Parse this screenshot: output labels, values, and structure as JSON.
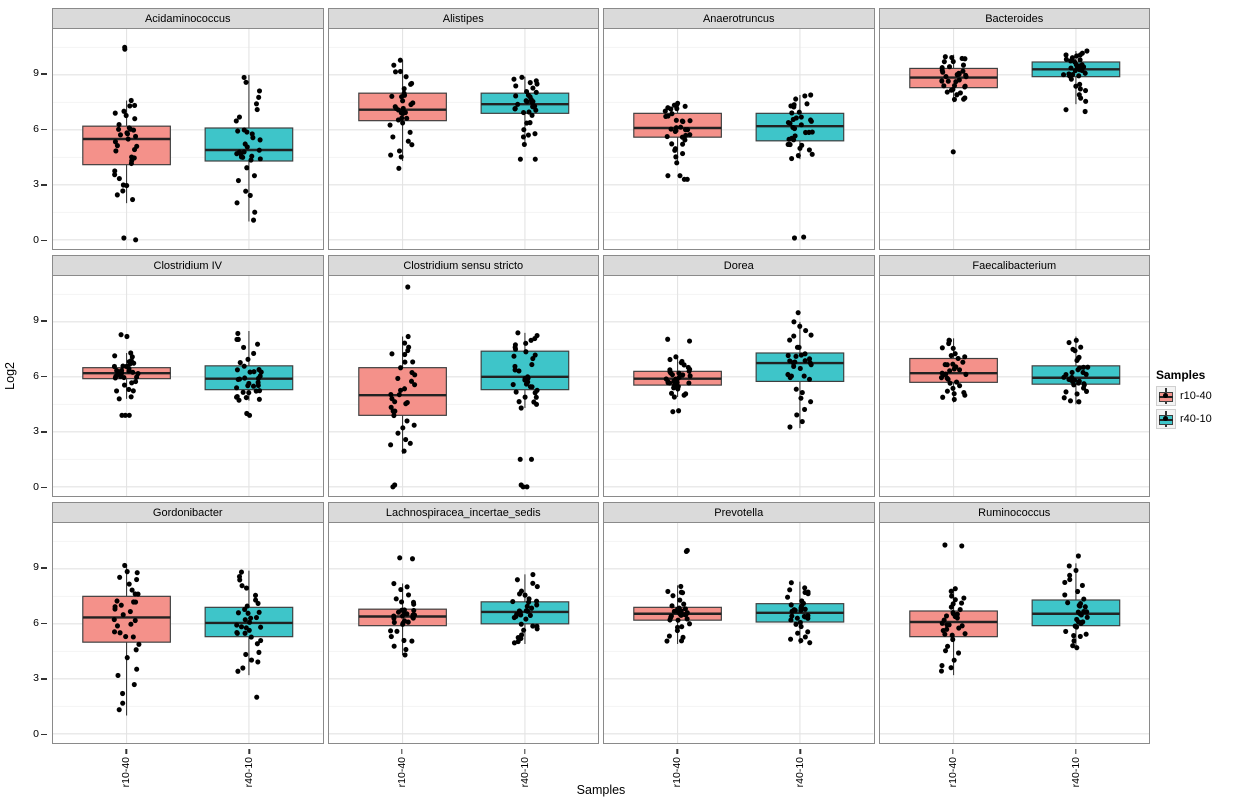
{
  "axes": {
    "y_title": "Log2",
    "x_title": "Samples",
    "yticks": [
      0,
      3,
      6,
      9
    ],
    "ylim": [
      -0.5,
      11.5
    ],
    "x_categories": [
      "r10-40",
      "r40-10"
    ]
  },
  "legend": {
    "title": "Samples",
    "items": [
      {
        "label": "r10-40",
        "color": "#F4918A"
      },
      {
        "label": "r40-10",
        "color": "#3EC5C9"
      }
    ]
  },
  "style": {
    "box_border": "#3F3F3F",
    "median": "#222222",
    "point": "#000000",
    "strip_bg": "#DADADA",
    "panel_border": "#8A8A8A",
    "grid_major": "#E3E3E3",
    "grid_minor": "#F2F2F2"
  },
  "chart_data": {
    "type": "boxplot",
    "overlay": "jittered points",
    "facet_layout": {
      "rows": 3,
      "cols": 4
    },
    "x_categories": [
      "r10-40",
      "r40-10"
    ],
    "ylabel": "Log2",
    "xlabel": "Samples",
    "ylim": [
      -0.5,
      11.5
    ],
    "yticks": [
      0,
      3,
      6,
      9
    ],
    "facets": [
      {
        "title": "Acidaminococcus",
        "groups": [
          {
            "category": "r10-40",
            "stats": {
              "lo": 2.0,
              "q1": 4.1,
              "med": 5.5,
              "q3": 6.2,
              "hi": 7.6
            },
            "outliers": [
              10.5,
              10.4,
              0.1,
              0.0
            ],
            "n_points": 34
          },
          {
            "category": "r40-10",
            "stats": {
              "lo": 1.0,
              "q1": 4.3,
              "med": 4.9,
              "q3": 6.1,
              "hi": 9.0
            },
            "outliers": [],
            "n_points": 34
          }
        ]
      },
      {
        "title": "Alistipes",
        "groups": [
          {
            "category": "r10-40",
            "stats": {
              "lo": 4.3,
              "q1": 6.5,
              "med": 7.1,
              "q3": 8.0,
              "hi": 9.8
            },
            "outliers": [
              3.9
            ],
            "n_points": 34
          },
          {
            "category": "r40-10",
            "stats": {
              "lo": 5.2,
              "q1": 6.9,
              "med": 7.4,
              "q3": 8.0,
              "hi": 8.9
            },
            "outliers": [
              4.4,
              4.4
            ],
            "n_points": 34
          }
        ]
      },
      {
        "title": "Anaerotruncus",
        "groups": [
          {
            "category": "r10-40",
            "stats": {
              "lo": 4.2,
              "q1": 5.6,
              "med": 6.1,
              "q3": 6.9,
              "hi": 7.5
            },
            "outliers": [
              3.5,
              3.5,
              3.3,
              3.3
            ],
            "n_points": 34
          },
          {
            "category": "r40-10",
            "stats": {
              "lo": 4.4,
              "q1": 5.4,
              "med": 6.2,
              "q3": 6.9,
              "hi": 7.9
            },
            "outliers": [
              0.15,
              0.1
            ],
            "n_points": 34
          }
        ]
      },
      {
        "title": "Bacteroides",
        "groups": [
          {
            "category": "r10-40",
            "stats": {
              "lo": 7.5,
              "q1": 8.3,
              "med": 8.85,
              "q3": 9.35,
              "hi": 10.1
            },
            "outliers": [
              4.8
            ],
            "n_points": 34
          },
          {
            "category": "r40-10",
            "stats": {
              "lo": 7.4,
              "q1": 8.9,
              "med": 9.3,
              "q3": 9.7,
              "hi": 10.3
            },
            "outliers": [
              7.1,
              7.0
            ],
            "n_points": 34
          }
        ]
      },
      {
        "title": "Clostridium IV",
        "groups": [
          {
            "category": "r10-40",
            "stats": {
              "lo": 4.8,
              "q1": 5.9,
              "med": 6.2,
              "q3": 6.5,
              "hi": 7.3
            },
            "outliers": [
              8.3,
              8.2,
              3.9,
              3.9,
              3.9
            ],
            "n_points": 34
          },
          {
            "category": "r40-10",
            "stats": {
              "lo": 4.7,
              "q1": 5.3,
              "med": 5.9,
              "q3": 6.6,
              "hi": 8.5
            },
            "outliers": [
              4.0,
              3.9
            ],
            "n_points": 34
          }
        ]
      },
      {
        "title": "Clostridium sensu stricto",
        "groups": [
          {
            "category": "r10-40",
            "stats": {
              "lo": 1.8,
              "q1": 3.9,
              "med": 5.0,
              "q3": 6.5,
              "hi": 8.2
            },
            "outliers": [
              10.9,
              0.1,
              0.0
            ],
            "n_points": 34
          },
          {
            "category": "r40-10",
            "stats": {
              "lo": 4.3,
              "q1": 5.3,
              "med": 6.0,
              "q3": 7.4,
              "hi": 8.4
            },
            "outliers": [
              1.5,
              1.5,
              0.1,
              0.0,
              0.0
            ],
            "n_points": 34
          }
        ]
      },
      {
        "title": "Dorea",
        "groups": [
          {
            "category": "r10-40",
            "stats": {
              "lo": 4.9,
              "q1": 5.55,
              "med": 5.9,
              "q3": 6.3,
              "hi": 7.1
            },
            "outliers": [
              8.05,
              7.95,
              4.15,
              4.1
            ],
            "n_points": 34
          },
          {
            "category": "r40-10",
            "stats": {
              "lo": 3.2,
              "q1": 5.75,
              "med": 6.75,
              "q3": 7.3,
              "hi": 9.0
            },
            "outliers": [
              9.5
            ],
            "n_points": 34
          }
        ]
      },
      {
        "title": "Faecalibacterium",
        "groups": [
          {
            "category": "r10-40",
            "stats": {
              "lo": 4.6,
              "q1": 5.7,
              "med": 6.2,
              "q3": 7.0,
              "hi": 8.1
            },
            "outliers": [],
            "n_points": 34
          },
          {
            "category": "r40-10",
            "stats": {
              "lo": 4.5,
              "q1": 5.6,
              "med": 5.95,
              "q3": 6.6,
              "hi": 8.2
            },
            "outliers": [],
            "n_points": 34
          }
        ]
      },
      {
        "title": "Gordonibacter",
        "groups": [
          {
            "category": "r10-40",
            "stats": {
              "lo": 1.0,
              "q1": 5.0,
              "med": 6.35,
              "q3": 7.5,
              "hi": 9.2
            },
            "outliers": [],
            "n_points": 34
          },
          {
            "category": "r40-10",
            "stats": {
              "lo": 3.2,
              "q1": 5.3,
              "med": 6.05,
              "q3": 6.9,
              "hi": 8.9
            },
            "outliers": [
              2.0
            ],
            "n_points": 34
          }
        ]
      },
      {
        "title": "Lachnospiracea_incertae_sedis",
        "groups": [
          {
            "category": "r10-40",
            "stats": {
              "lo": 4.3,
              "q1": 5.9,
              "med": 6.4,
              "q3": 6.8,
              "hi": 8.2
            },
            "outliers": [
              9.6,
              9.55
            ],
            "n_points": 34
          },
          {
            "category": "r40-10",
            "stats": {
              "lo": 4.9,
              "q1": 6.0,
              "med": 6.65,
              "q3": 7.2,
              "hi": 8.7
            },
            "outliers": [],
            "n_points": 34
          }
        ]
      },
      {
        "title": "Prevotella",
        "groups": [
          {
            "category": "r10-40",
            "stats": {
              "lo": 4.9,
              "q1": 6.2,
              "med": 6.55,
              "q3": 6.9,
              "hi": 8.1
            },
            "outliers": [
              10.0,
              9.95
            ],
            "n_points": 34
          },
          {
            "category": "r40-10",
            "stats": {
              "lo": 4.9,
              "q1": 6.1,
              "med": 6.6,
              "q3": 7.1,
              "hi": 8.3
            },
            "outliers": [],
            "n_points": 34
          }
        ]
      },
      {
        "title": "Ruminococcus",
        "groups": [
          {
            "category": "r10-40",
            "stats": {
              "lo": 3.2,
              "q1": 5.3,
              "med": 6.1,
              "q3": 6.7,
              "hi": 8.0
            },
            "outliers": [
              10.3,
              10.25
            ],
            "n_points": 34
          },
          {
            "category": "r40-10",
            "stats": {
              "lo": 4.7,
              "q1": 5.9,
              "med": 6.55,
              "q3": 7.3,
              "hi": 9.3
            },
            "outliers": [
              9.7
            ],
            "n_points": 34
          }
        ]
      }
    ]
  }
}
